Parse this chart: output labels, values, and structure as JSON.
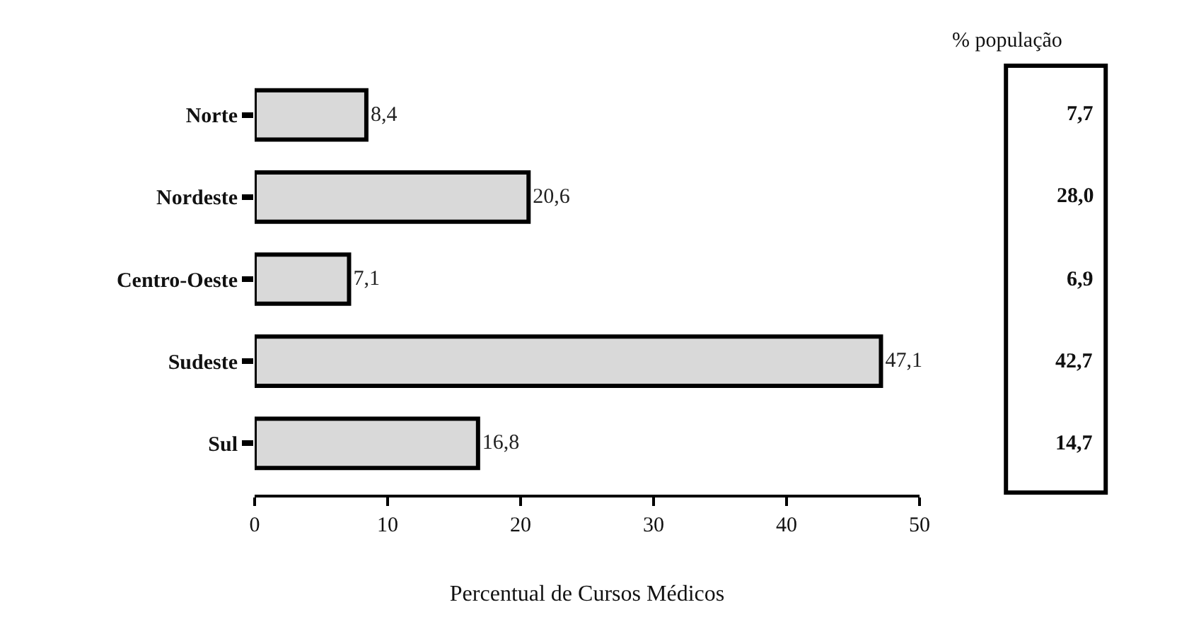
{
  "chart_data": {
    "type": "bar",
    "orientation": "horizontal",
    "categories": [
      "Norte",
      "Nordeste",
      "Centro-Oeste",
      "Sudeste",
      "Sul"
    ],
    "values": [
      8.4,
      20.6,
      7.1,
      47.1,
      16.8
    ],
    "value_labels": [
      "8,4",
      "20,6",
      "7,1",
      "47,1",
      "16,8"
    ],
    "color": "#d9d9d9",
    "xlabel": "Percentual de Cursos Médicos",
    "xlim": [
      0,
      50
    ],
    "xticks": [
      0,
      10,
      20,
      30,
      40,
      50
    ],
    "legend": false,
    "annotations": [
      "% população",
      "7,7",
      "28,0",
      "6,9",
      "42,7",
      "14,7"
    ]
  }
}
